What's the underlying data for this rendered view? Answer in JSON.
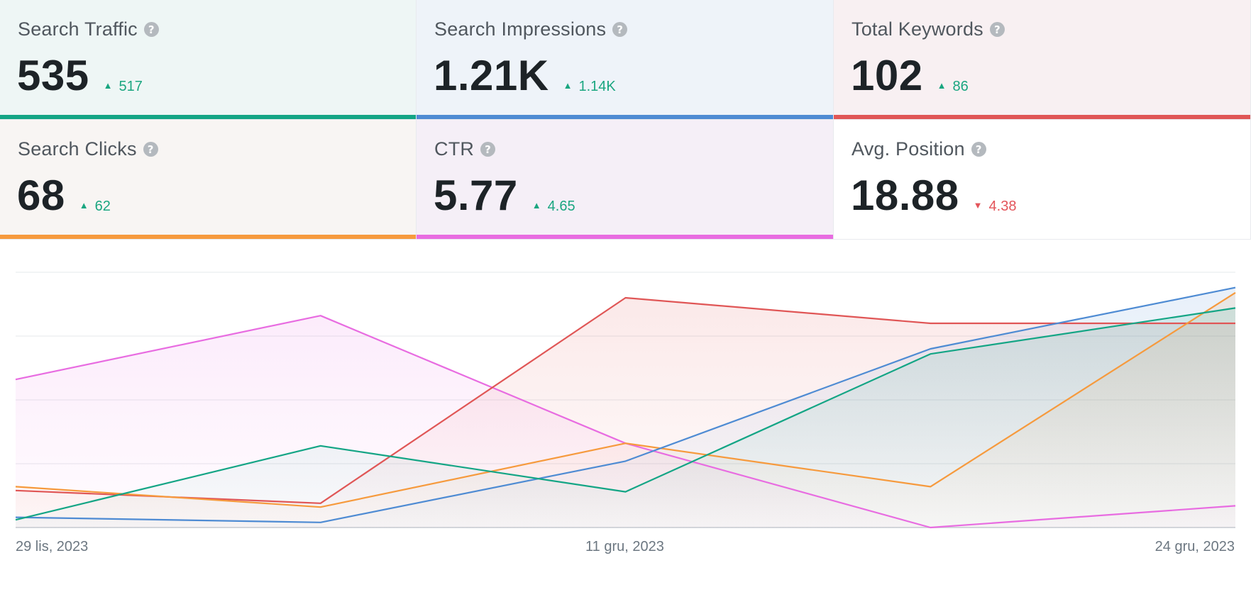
{
  "cards": [
    {
      "title": "Search Traffic",
      "value": "535",
      "delta": "517",
      "direction": "up",
      "color": "#14a585",
      "bg": "#eef6f5"
    },
    {
      "title": "Search Impressions",
      "value": "1.21K",
      "delta": "1.14K",
      "direction": "up",
      "color": "#4e8bd3",
      "bg": "#eef3f9"
    },
    {
      "title": "Total Keywords",
      "value": "102",
      "delta": "86",
      "direction": "up",
      "color": "#e05656",
      "bg": "#f8f0f2"
    },
    {
      "title": "Search Clicks",
      "value": "68",
      "delta": "62",
      "direction": "up",
      "color": "#f69a3d",
      "bg": "#f8f5f3"
    },
    {
      "title": "CTR",
      "value": "5.77",
      "delta": "4.65",
      "direction": "up",
      "color": "#e86ce1",
      "bg": "#f5eff7"
    },
    {
      "title": "Avg. Position",
      "value": "18.88",
      "delta": "4.38",
      "direction": "down",
      "color": "#e3545a",
      "bg": "#ffffff"
    }
  ],
  "help_glyph": "?",
  "arrows": {
    "up": "▲",
    "down": "▼"
  },
  "chart_data": {
    "type": "area",
    "x_tick_labels": [
      "29 lis, 2023",
      "11 gru, 2023",
      "24 gru, 2023"
    ],
    "ylim": [
      0,
      100
    ],
    "grid": true,
    "series": [
      {
        "color": "#e86ce1",
        "values": [
          58,
          83,
          33,
          0,
          8.5
        ]
      },
      {
        "color": "#e05656",
        "values": [
          14.5,
          9.5,
          90,
          80,
          80
        ]
      },
      {
        "color": "#f69a3d",
        "values": [
          16,
          8,
          33,
          16,
          92
        ]
      },
      {
        "color": "#4e8bd3",
        "values": [
          4,
          2,
          26,
          70,
          94
        ]
      },
      {
        "color": "#14a585",
        "values": [
          3,
          32,
          14,
          68,
          86
        ]
      }
    ]
  }
}
